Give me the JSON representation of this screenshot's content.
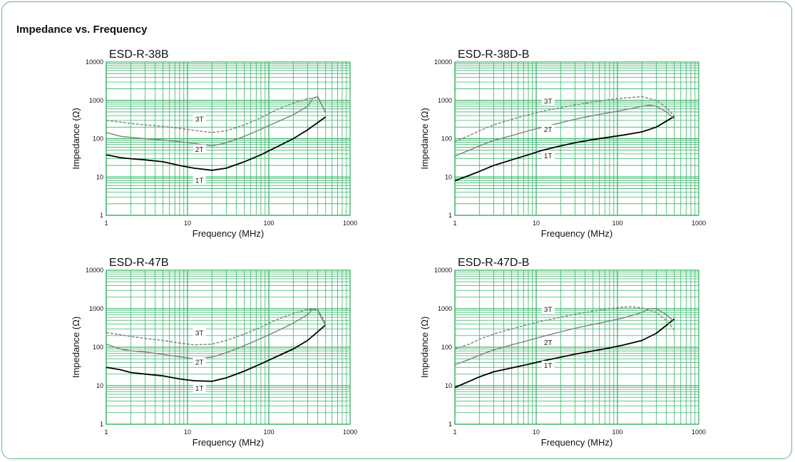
{
  "section_title": "Impedance vs. Frequency",
  "colors": {
    "grid": "#3bb36a",
    "panel_border": "#5cb87a",
    "series_1T": "#000000",
    "series_2T": "#808080",
    "series_3T": "#808080"
  },
  "chart_data": [
    {
      "type": "line",
      "title": "ESD-R-38B",
      "xlabel": "Frequency (MHz)",
      "ylabel": "Impedance (Ω)",
      "xscale": "log",
      "yscale": "log",
      "xlim": [
        1,
        1000
      ],
      "ylim": [
        1,
        10000
      ],
      "xticks": [
        "1",
        "10",
        "100",
        "1000"
      ],
      "yticks": [
        "1",
        "10",
        "100",
        "1000",
        "10000"
      ],
      "grid": true,
      "series": [
        {
          "name": "1T",
          "style": "solid-black",
          "x": [
            1,
            1.5,
            2,
            3,
            5,
            8,
            12,
            20,
            30,
            50,
            80,
            120,
            200,
            300,
            500
          ],
          "y": [
            38,
            32,
            30,
            28,
            25,
            20,
            17,
            15,
            17,
            25,
            38,
            58,
            100,
            170,
            370
          ]
        },
        {
          "name": "2T",
          "style": "solid-grey",
          "x": [
            1,
            1.5,
            2,
            3,
            5,
            8,
            12,
            20,
            30,
            50,
            80,
            120,
            200,
            300,
            350,
            400,
            500
          ],
          "y": [
            145,
            115,
            108,
            100,
            92,
            83,
            75,
            65,
            78,
            115,
            175,
            260,
            420,
            700,
            1150,
            1250,
            480
          ]
        },
        {
          "name": "3T",
          "style": "dashed-grey",
          "x": [
            1,
            1.5,
            2,
            3,
            5,
            8,
            12,
            20,
            30,
            50,
            80,
            120,
            200,
            300,
            400,
            500
          ],
          "y": [
            300,
            270,
            250,
            230,
            210,
            185,
            165,
            145,
            160,
            230,
            350,
            550,
            850,
            1100,
            1200,
            500
          ]
        }
      ],
      "series_labels": [
        {
          "text": "3T",
          "x": 14,
          "y": 320
        },
        {
          "text": "2T",
          "x": 14,
          "y": 52
        },
        {
          "text": "1T",
          "x": 14,
          "y": 8
        }
      ]
    },
    {
      "type": "line",
      "title": "ESD-R-38D-B",
      "xlabel": "Frequency (MHz)",
      "ylabel": "Impedance (Ω)",
      "xscale": "log",
      "yscale": "log",
      "xlim": [
        1,
        1000
      ],
      "ylim": [
        1,
        10000
      ],
      "xticks": [
        "1",
        "10",
        "100",
        "1000"
      ],
      "yticks": [
        "1",
        "10",
        "100",
        "1000",
        "10000"
      ],
      "grid": true,
      "series": [
        {
          "name": "1T",
          "style": "solid-black",
          "x": [
            1,
            1.5,
            2,
            3,
            5,
            8,
            12,
            20,
            30,
            50,
            80,
            120,
            200,
            300,
            500
          ],
          "y": [
            8,
            11,
            14,
            20,
            28,
            38,
            50,
            65,
            78,
            95,
            110,
            125,
            150,
            200,
            380
          ]
        },
        {
          "name": "2T",
          "style": "solid-grey",
          "x": [
            1,
            1.5,
            2,
            3,
            5,
            8,
            12,
            20,
            30,
            50,
            80,
            120,
            200,
            250,
            300,
            400,
            500
          ],
          "y": [
            35,
            50,
            65,
            90,
            120,
            160,
            200,
            260,
            320,
            400,
            480,
            560,
            700,
            750,
            700,
            500,
            330
          ]
        },
        {
          "name": "3T",
          "style": "dashed-grey",
          "x": [
            1,
            1.5,
            2,
            3,
            5,
            8,
            12,
            20,
            30,
            50,
            80,
            120,
            200,
            300,
            400,
            500
          ],
          "y": [
            85,
            120,
            160,
            230,
            320,
            420,
            520,
            640,
            760,
            900,
            1050,
            1150,
            1250,
            1000,
            650,
            380
          ]
        }
      ],
      "series_labels": [
        {
          "text": "3T",
          "x": 14,
          "y": 920
        },
        {
          "text": "2T",
          "x": 14,
          "y": 170
        },
        {
          "text": "1T",
          "x": 14,
          "y": 35
        }
      ]
    },
    {
      "type": "line",
      "title": "ESD-R-47B",
      "xlabel": "Frequency (MHz)",
      "ylabel": "Impedance (Ω)",
      "xscale": "log",
      "yscale": "log",
      "xlim": [
        1,
        1000
      ],
      "ylim": [
        1,
        10000
      ],
      "xticks": [
        "1",
        "10",
        "100",
        "1000"
      ],
      "yticks": [
        "1",
        "10",
        "100",
        "1000",
        "10000"
      ],
      "grid": true,
      "series": [
        {
          "name": "1T",
          "style": "solid-black",
          "x": [
            1,
            1.5,
            2,
            3,
            5,
            8,
            12,
            20,
            30,
            50,
            80,
            120,
            200,
            300,
            500
          ],
          "y": [
            30,
            26,
            22,
            20,
            18,
            15,
            13.5,
            13,
            16,
            24,
            37,
            55,
            90,
            150,
            380
          ]
        },
        {
          "name": "2T",
          "style": "solid-grey",
          "x": [
            1,
            1.5,
            2,
            3,
            5,
            8,
            12,
            20,
            30,
            50,
            80,
            120,
            200,
            300,
            350,
            400,
            500
          ],
          "y": [
            120,
            90,
            80,
            75,
            65,
            56,
            50,
            55,
            72,
            110,
            170,
            250,
            420,
            700,
            1000,
            900,
            360
          ]
        },
        {
          "name": "3T",
          "style": "dashed-grey",
          "x": [
            1,
            1.5,
            2,
            3,
            5,
            8,
            12,
            20,
            30,
            50,
            80,
            120,
            200,
            300,
            400,
            500
          ],
          "y": [
            240,
            210,
            190,
            170,
            150,
            128,
            115,
            120,
            150,
            220,
            330,
            500,
            750,
            950,
            950,
            420
          ]
        }
      ],
      "series_labels": [
        {
          "text": "3T",
          "x": 14,
          "y": 230
        },
        {
          "text": "2T",
          "x": 14,
          "y": 40
        },
        {
          "text": "1T",
          "x": 14,
          "y": 8.5
        }
      ]
    },
    {
      "type": "line",
      "title": "ESD-R-47D-B",
      "xlabel": "Frequency (MHz)",
      "ylabel": "Impedance (Ω)",
      "xscale": "log",
      "yscale": "log",
      "xlim": [
        1,
        1000
      ],
      "ylim": [
        1,
        10000
      ],
      "xticks": [
        "1",
        "10",
        "100",
        "1000"
      ],
      "yticks": [
        "1",
        "10",
        "100",
        "1000",
        "10000"
      ],
      "grid": true,
      "series": [
        {
          "name": "1T",
          "style": "solid-black",
          "x": [
            1,
            1.5,
            2,
            3,
            5,
            8,
            12,
            20,
            30,
            50,
            80,
            120,
            200,
            300,
            500
          ],
          "y": [
            9,
            13,
            17,
            23,
            29,
            36,
            44,
            55,
            66,
            80,
            96,
            115,
            150,
            230,
            540
          ]
        },
        {
          "name": "2T",
          "style": "solid-grey",
          "x": [
            1,
            1.5,
            2,
            3,
            5,
            8,
            12,
            20,
            30,
            50,
            80,
            120,
            200,
            250,
            300,
            400,
            500
          ],
          "y": [
            35,
            48,
            62,
            85,
            115,
            150,
            190,
            250,
            310,
            390,
            480,
            580,
            800,
            1000,
            1000,
            700,
            470
          ]
        },
        {
          "name": "3T",
          "style": "dashed-grey",
          "x": [
            1,
            1.5,
            2,
            3,
            5,
            8,
            12,
            20,
            30,
            50,
            80,
            120,
            150,
            200,
            300,
            400,
            500
          ],
          "y": [
            90,
            120,
            160,
            220,
            300,
            390,
            480,
            600,
            720,
            860,
            1000,
            1100,
            1120,
            1050,
            800,
            500,
            280
          ]
        }
      ],
      "series_labels": [
        {
          "text": "3T",
          "x": 14,
          "y": 930
        },
        {
          "text": "2T",
          "x": 14,
          "y": 130
        },
        {
          "text": "1T",
          "x": 14,
          "y": 33
        }
      ]
    }
  ]
}
